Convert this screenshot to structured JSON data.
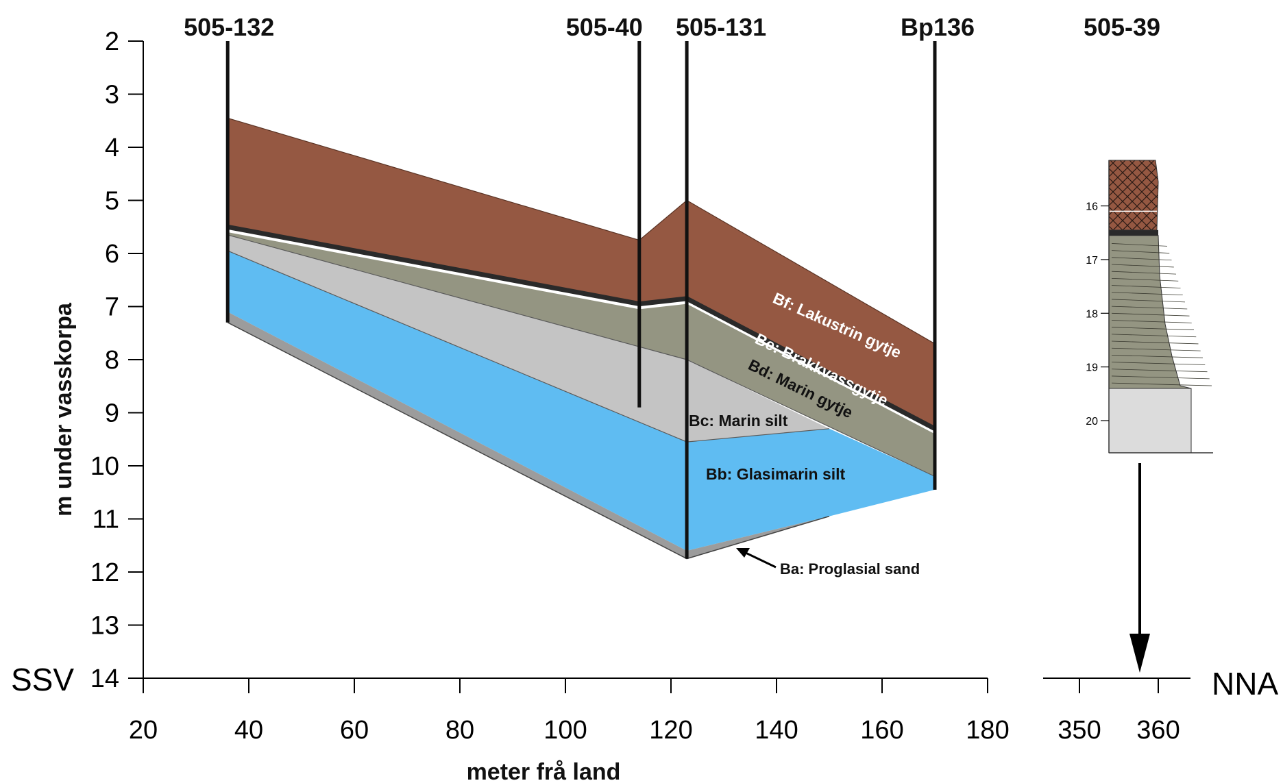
{
  "axes": {
    "x_title": "meter frå land",
    "y_title": "m under vasskorpa",
    "x_ticks_main": [
      "20",
      "40",
      "60",
      "80",
      "100",
      "120",
      "140",
      "160",
      "180"
    ],
    "x_ticks_right": [
      "350",
      "360"
    ],
    "y_ticks": [
      "2",
      "3",
      "4",
      "5",
      "6",
      "7",
      "8",
      "9",
      "10",
      "11",
      "12",
      "13",
      "14"
    ],
    "x_range_main": [
      20,
      180
    ],
    "y_range": [
      2,
      14
    ],
    "direction_left": "SSV",
    "direction_right": "NNA"
  },
  "boreholes": [
    {
      "id": "505-132",
      "x": 36,
      "top": 2,
      "bottom": 7.3
    },
    {
      "id": "505-40",
      "x": 114,
      "top": 2,
      "bottom": 8.9
    },
    {
      "id": "505-131",
      "x": 123,
      "top": 2,
      "bottom": 11.75
    },
    {
      "id": "Bp136",
      "x": 170,
      "top": 2,
      "bottom": 10.45
    }
  ],
  "inset": {
    "borehole": "505-39",
    "depth_ticks": [
      "16",
      "17",
      "18",
      "19",
      "20"
    ],
    "depth_range": [
      15.15,
      20.6
    ]
  },
  "units": [
    {
      "code": "Bf",
      "label": "Bf: Lakustrin gytje",
      "color": "#955842",
      "text_color": "#ffffff"
    },
    {
      "code": "Be",
      "label": "Be: Brakkvassgytje",
      "color": "#2a2a2a",
      "text_color": "#ffffff"
    },
    {
      "code": "Bd",
      "label": "Bd: Marin gytje",
      "color": "#949582",
      "text_color": "#111111"
    },
    {
      "code": "Bc",
      "label": "Bc: Marin silt",
      "color": "#c4c4c4",
      "text_color": "#111111"
    },
    {
      "code": "Bb",
      "label": "Bb: Glasimarin silt",
      "color": "#5fbcf2",
      "text_color": "#111111"
    },
    {
      "code": "Ba",
      "label": "Ba: Proglasial sand",
      "color": "#9c9c9c",
      "text_color": "#111111"
    }
  ],
  "chart_data": {
    "type": "diagram",
    "x": [
      36,
      114,
      123,
      150,
      170
    ],
    "layer_boundaries": [
      {
        "name": "Bf top",
        "points": [
          [
            36,
            3.45
          ],
          [
            114,
            5.75
          ],
          [
            123,
            5.0
          ],
          [
            170,
            7.7
          ]
        ]
      },
      {
        "name": "Be top",
        "points": [
          [
            36,
            5.5
          ],
          [
            114,
            6.95
          ],
          [
            123,
            6.85
          ],
          [
            170,
            9.3
          ]
        ]
      },
      {
        "name": "Bd top",
        "points": [
          [
            36,
            5.6
          ],
          [
            114,
            7.05
          ],
          [
            123,
            6.95
          ],
          [
            170,
            9.4
          ]
        ]
      },
      {
        "name": "Bc top",
        "points": [
          [
            36,
            5.65
          ],
          [
            123,
            8.0
          ],
          [
            170,
            10.2
          ]
        ]
      },
      {
        "name": "Bb top",
        "points": [
          [
            36,
            5.95
          ],
          [
            123,
            9.55
          ],
          [
            150,
            9.3
          ],
          [
            170,
            10.2
          ]
        ]
      },
      {
        "name": "Ba top",
        "points": [
          [
            36,
            7.1
          ],
          [
            123,
            11.6
          ],
          [
            150,
            10.95
          ]
        ]
      },
      {
        "name": "Ba base",
        "points": [
          [
            36,
            7.3
          ],
          [
            123,
            11.75
          ],
          [
            150,
            10.95
          ]
        ]
      }
    ]
  }
}
